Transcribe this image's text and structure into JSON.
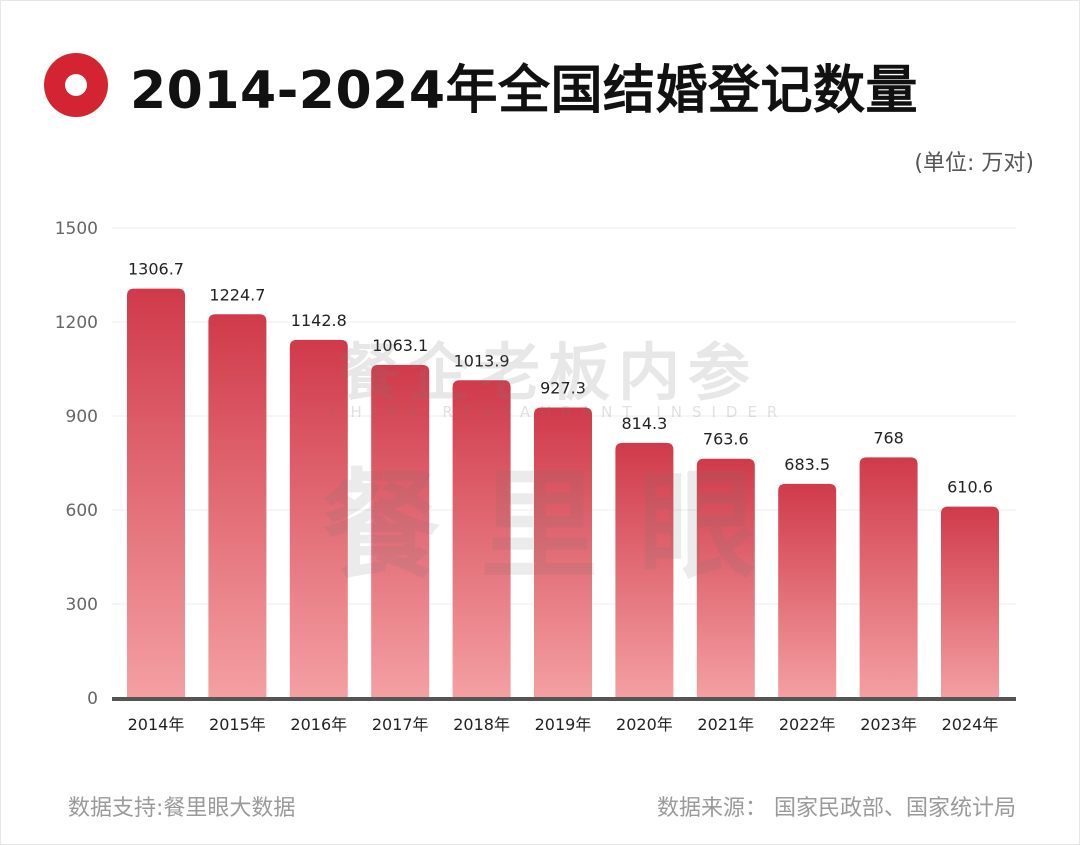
{
  "header": {
    "title": "2014-2024年全国结婚登记数量",
    "unit": "(单位: 万对)"
  },
  "footer": {
    "support": "数据支持:餐里眼大数据",
    "source": "数据来源： 国家民政部、国家统计局"
  },
  "watermark": {
    "line1": "餐企老板内参",
    "line2": "CHINA RESTAURANT INSIDER",
    "line3": "餐里眼"
  },
  "colors": {
    "bar_top": "#d03a4a",
    "bar_bottom": "#f4a0a3",
    "accent": "#d42331",
    "axis": "#555555"
  },
  "chart_data": {
    "type": "bar",
    "title": "2014-2024年全国结婚登记数量",
    "xlabel": "",
    "ylabel": "万对",
    "ylim": [
      0,
      1500
    ],
    "yticks": [
      0,
      300,
      600,
      900,
      1200,
      1500
    ],
    "ytick_labels": [
      "0",
      "300",
      "600",
      "900",
      "1200",
      "1500"
    ],
    "grid": true,
    "categories": [
      "2014年",
      "2015年",
      "2016年",
      "2017年",
      "2018年",
      "2019年",
      "2020年",
      "2021年",
      "2022年",
      "2023年",
      "2024年"
    ],
    "values": [
      1306.7,
      1224.7,
      1142.8,
      1063.1,
      1013.9,
      927.3,
      814.3,
      763.6,
      683.5,
      768,
      610.6
    ],
    "value_labels": [
      "1306.7",
      "1224.7",
      "1142.8",
      "1063.1",
      "1013.9",
      "927.3",
      "814.3",
      "763.6",
      "683.5",
      "768",
      "610.6"
    ]
  }
}
